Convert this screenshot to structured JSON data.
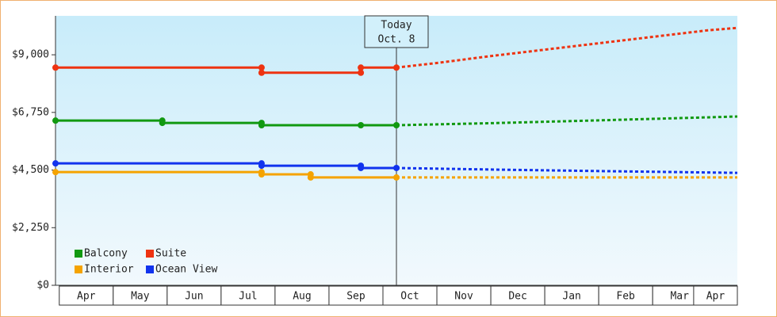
{
  "chart_data": {
    "type": "line",
    "xlim": [
      -0.07,
      12.57
    ],
    "xticks": [
      {
        "value": 0.5,
        "label": "Apr"
      },
      {
        "value": 1.5,
        "label": "May"
      },
      {
        "value": 2.5,
        "label": "Jun"
      },
      {
        "value": 3.5,
        "label": "Jul"
      },
      {
        "value": 4.5,
        "label": "Aug"
      },
      {
        "value": 5.5,
        "label": "Sep"
      },
      {
        "value": 6.5,
        "label": "Oct"
      },
      {
        "value": 7.5,
        "label": "Nov"
      },
      {
        "value": 8.5,
        "label": "Dec"
      },
      {
        "value": 9.5,
        "label": "Jan"
      },
      {
        "value": 10.5,
        "label": "Feb"
      },
      {
        "value": 11.5,
        "label": "Mar"
      },
      {
        "value": 12.26,
        "label": "Apr"
      }
    ],
    "ylim": [
      0,
      10520
    ],
    "yticks": [
      {
        "value": 0,
        "label": "$0"
      },
      {
        "value": 2250,
        "label": "$2,250"
      },
      {
        "value": 4500,
        "label": "$4,500"
      },
      {
        "value": 6750,
        "label": "$6,750"
      },
      {
        "value": 9000,
        "label": "$9,000"
      }
    ],
    "annotation": {
      "lines": [
        "Today",
        "Oct. 8"
      ],
      "x": 6.25
    },
    "legend": "bottom-left",
    "series": [
      {
        "name": "Balcony",
        "color": "#119911",
        "x": [
          -0.07,
          1.91,
          1.91,
          3.75,
          3.75,
          5.59,
          6.25
        ],
        "values": [
          6430,
          6430,
          6340,
          6340,
          6250,
          6250,
          6250
        ],
        "forecast_x": [
          6.25,
          8,
          10,
          12.57
        ],
        "forecast_values": [
          6250,
          6330,
          6440,
          6590
        ]
      },
      {
        "name": "Suite",
        "color": "#ee3311",
        "x": [
          -0.07,
          3.75,
          3.75,
          5.59,
          5.59,
          6.25
        ],
        "values": [
          8500,
          8500,
          8300,
          8300,
          8500,
          8500
        ],
        "forecast_x": [
          6.25,
          7,
          8,
          9,
          10,
          11,
          12,
          12.57
        ],
        "forecast_values": [
          8500,
          8680,
          8950,
          9200,
          9450,
          9700,
          9950,
          10050
        ]
      },
      {
        "name": "Interior",
        "color": "#f5a300",
        "x": [
          -0.07,
          3.75,
          3.75,
          4.66,
          4.66,
          6.25
        ],
        "values": [
          4420,
          4420,
          4330,
          4330,
          4210,
          4210
        ],
        "forecast_x": [
          6.25,
          12.57
        ],
        "forecast_values": [
          4210,
          4210
        ]
      },
      {
        "name": "Ocean View",
        "color": "#1133ee",
        "x": [
          -0.07,
          3.75,
          3.75,
          5.59,
          5.59,
          6.25
        ],
        "values": [
          4760,
          4760,
          4670,
          4670,
          4580,
          4580
        ],
        "forecast_x": [
          6.25,
          8,
          10,
          12.57
        ],
        "forecast_values": [
          4580,
          4520,
          4460,
          4390
        ]
      }
    ]
  }
}
